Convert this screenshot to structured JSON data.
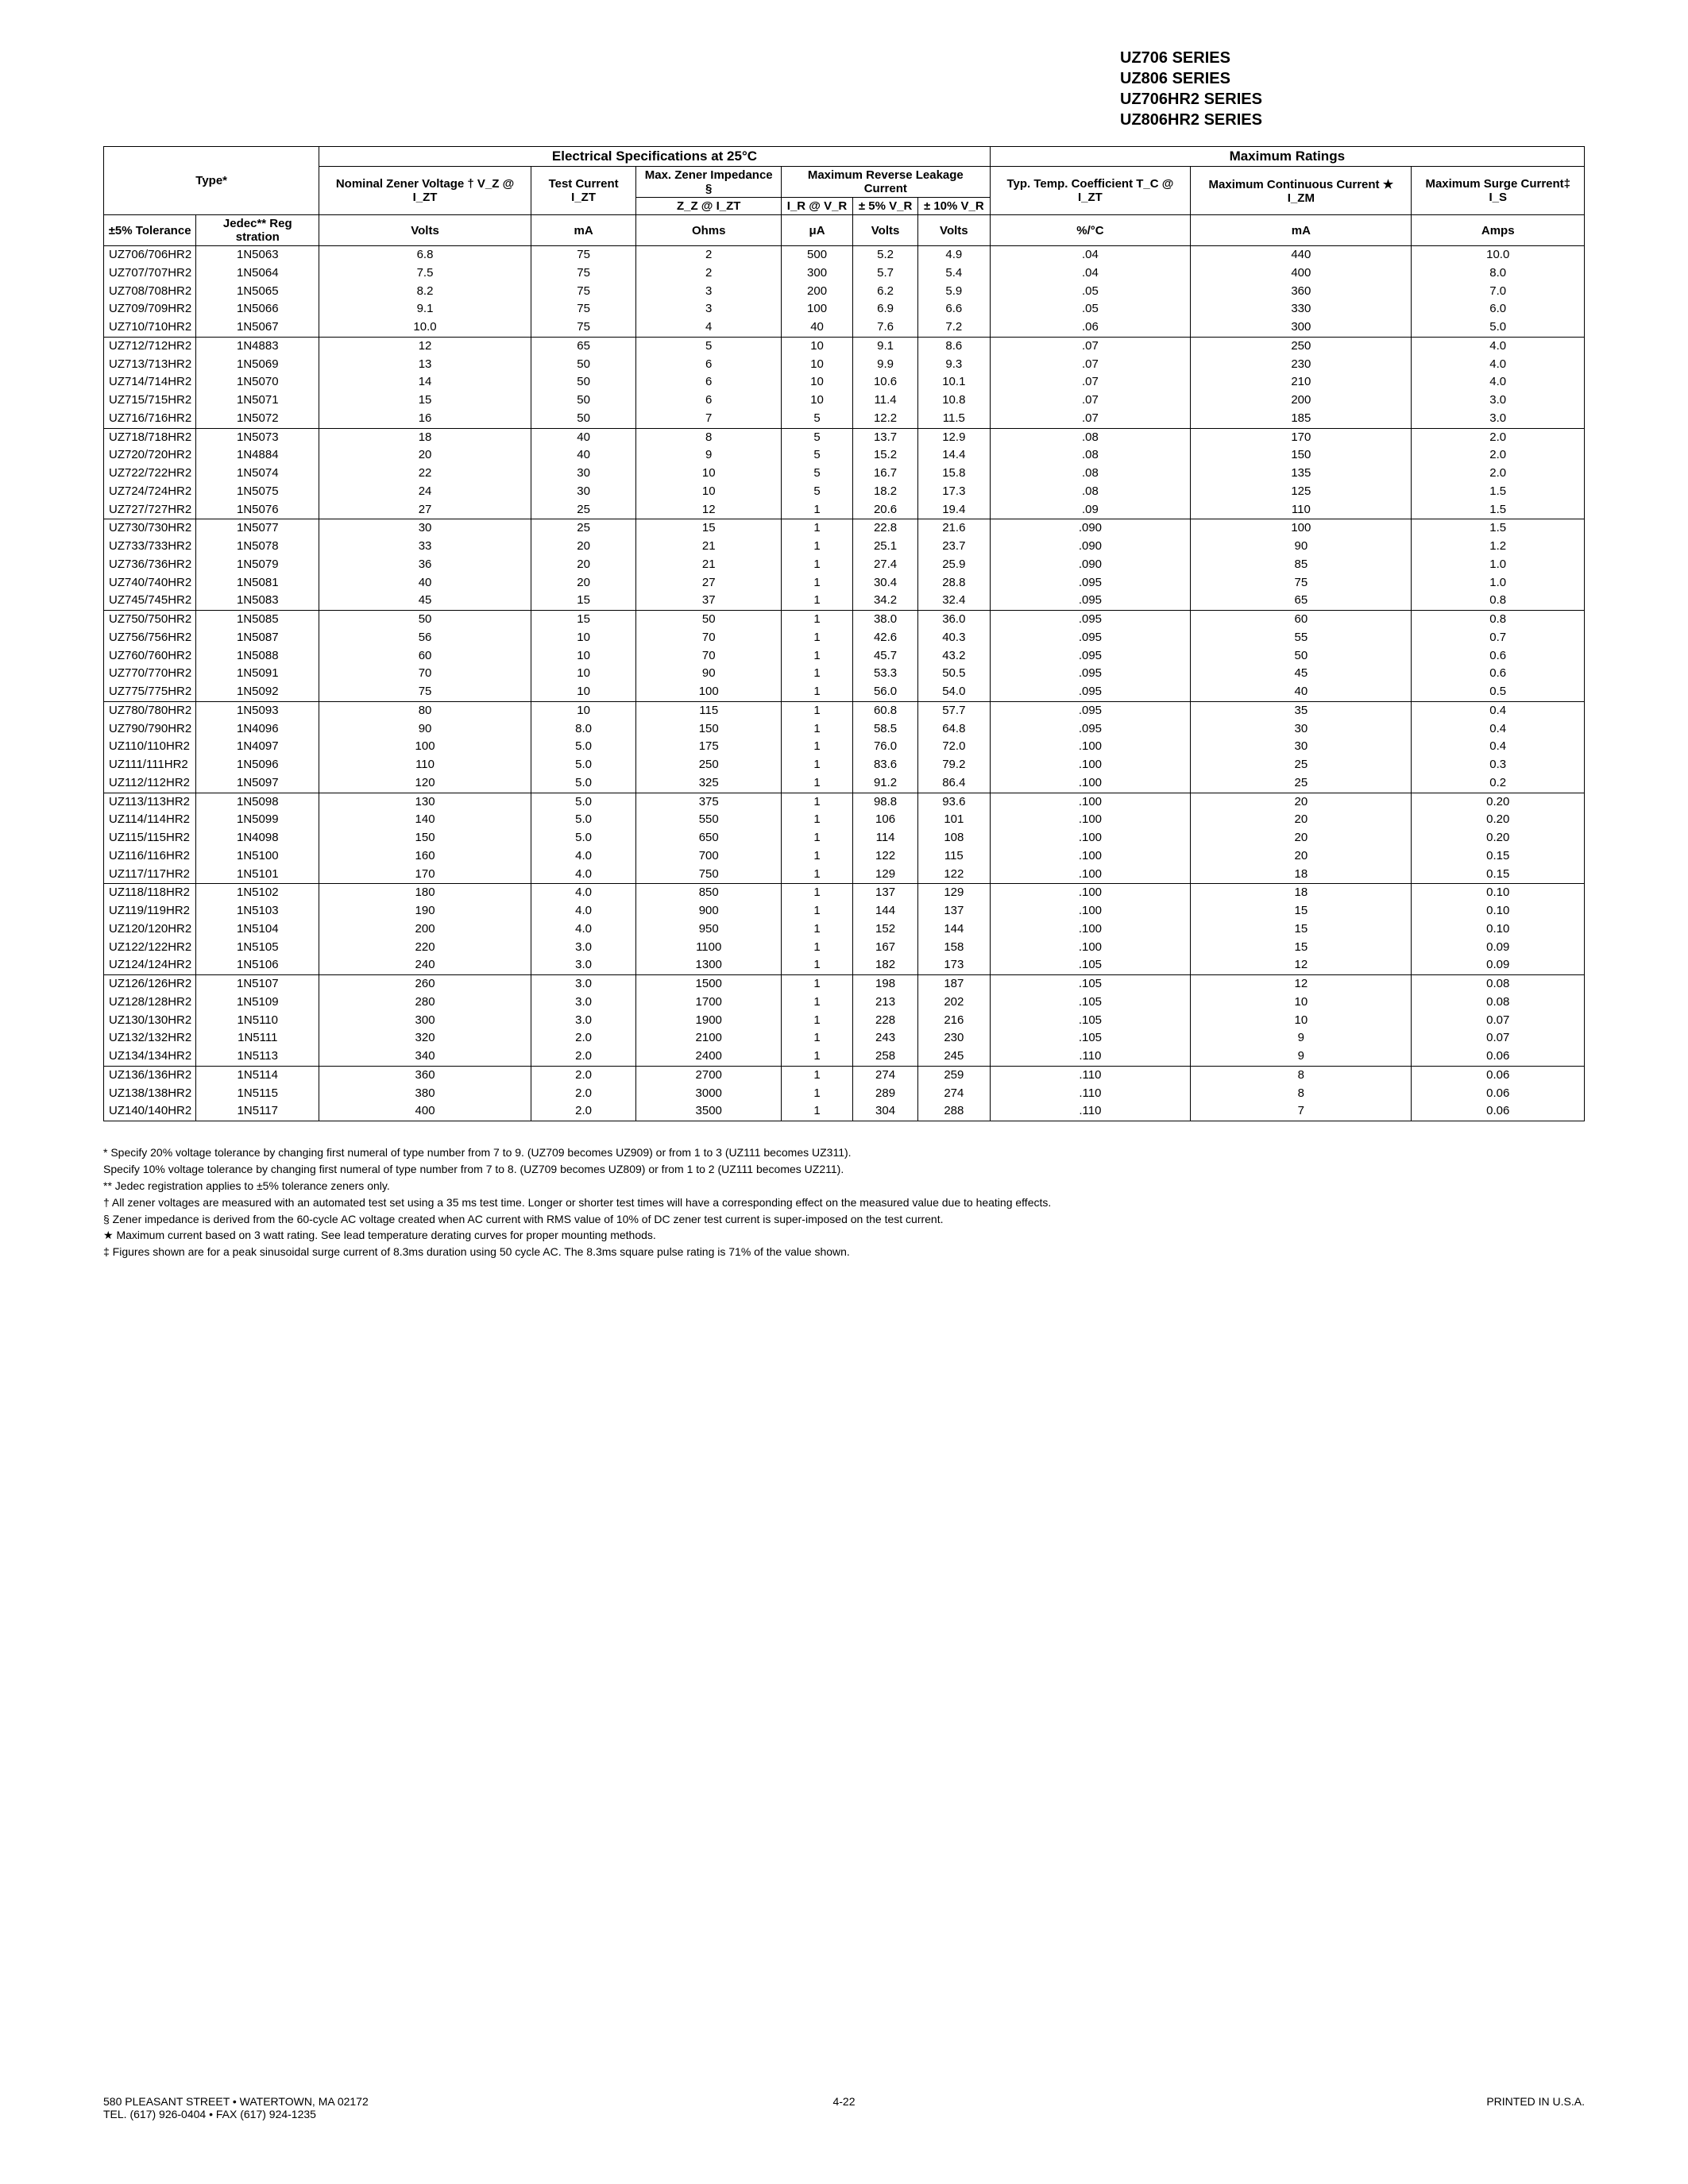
{
  "series_lines": [
    "UZ706 SERIES",
    "UZ806 SERIES",
    "UZ706HR2 SERIES",
    "UZ806HR2 SERIES"
  ],
  "headers": {
    "elec_spec": "Electrical Specifications at 25°C",
    "max_ratings": "Maximum Ratings",
    "type": "Type*",
    "nominal": "Nominal Zener Voltage † V_Z @ I_ZT",
    "test_current": "Test Current I_ZT",
    "max_zener_imp": "Max. Zener Impedance §",
    "zz": "Z_Z @ I_ZT",
    "max_rev_leak": "Maximum Reverse Leakage Current",
    "ir_vr": "I_R @ V_R",
    "pm5": "± 5% V_R",
    "pm10": "± 10% V_R",
    "typ_temp": "Typ. Temp. Coefficient T_C @ I_ZT",
    "max_cont": "Maximum Continuous Current ★ I_ZM",
    "max_surge": "Maximum Surge Current‡ I_S",
    "tol5": "±5% Tolerance",
    "jedec": "Jedec** Reg stration",
    "units": [
      "Volts",
      "mA",
      "Ohms",
      "μA",
      "Volts",
      "Volts",
      "%/°C",
      "mA",
      "Amps"
    ]
  },
  "groups": [
    [
      [
        "UZ706/706HR2",
        "1N5063",
        "6.8",
        "75",
        "2",
        "500",
        "5.2",
        "4.9",
        ".04",
        "440",
        "10.0"
      ],
      [
        "UZ707/707HR2",
        "1N5064",
        "7.5",
        "75",
        "2",
        "300",
        "5.7",
        "5.4",
        ".04",
        "400",
        "8.0"
      ],
      [
        "UZ708/708HR2",
        "1N5065",
        "8.2",
        "75",
        "3",
        "200",
        "6.2",
        "5.9",
        ".05",
        "360",
        "7.0"
      ],
      [
        "UZ709/709HR2",
        "1N5066",
        "9.1",
        "75",
        "3",
        "100",
        "6.9",
        "6.6",
        ".05",
        "330",
        "6.0"
      ],
      [
        "UZ710/710HR2",
        "1N5067",
        "10.0",
        "75",
        "4",
        "40",
        "7.6",
        "7.2",
        ".06",
        "300",
        "5.0"
      ]
    ],
    [
      [
        "UZ712/712HR2",
        "1N4883",
        "12",
        "65",
        "5",
        "10",
        "9.1",
        "8.6",
        ".07",
        "250",
        "4.0"
      ],
      [
        "UZ713/713HR2",
        "1N5069",
        "13",
        "50",
        "6",
        "10",
        "9.9",
        "9.3",
        ".07",
        "230",
        "4.0"
      ],
      [
        "UZ714/714HR2",
        "1N5070",
        "14",
        "50",
        "6",
        "10",
        "10.6",
        "10.1",
        ".07",
        "210",
        "4.0"
      ],
      [
        "UZ715/715HR2",
        "1N5071",
        "15",
        "50",
        "6",
        "10",
        "11.4",
        "10.8",
        ".07",
        "200",
        "3.0"
      ],
      [
        "UZ716/716HR2",
        "1N5072",
        "16",
        "50",
        "7",
        "5",
        "12.2",
        "11.5",
        ".07",
        "185",
        "3.0"
      ]
    ],
    [
      [
        "UZ718/718HR2",
        "1N5073",
        "18",
        "40",
        "8",
        "5",
        "13.7",
        "12.9",
        ".08",
        "170",
        "2.0"
      ],
      [
        "UZ720/720HR2",
        "1N4884",
        "20",
        "40",
        "9",
        "5",
        "15.2",
        "14.4",
        ".08",
        "150",
        "2.0"
      ],
      [
        "UZ722/722HR2",
        "1N5074",
        "22",
        "30",
        "10",
        "5",
        "16.7",
        "15.8",
        ".08",
        "135",
        "2.0"
      ],
      [
        "UZ724/724HR2",
        "1N5075",
        "24",
        "30",
        "10",
        "5",
        "18.2",
        "17.3",
        ".08",
        "125",
        "1.5"
      ],
      [
        "UZ727/727HR2",
        "1N5076",
        "27",
        "25",
        "12",
        "1",
        "20.6",
        "19.4",
        ".09",
        "110",
        "1.5"
      ]
    ],
    [
      [
        "UZ730/730HR2",
        "1N5077",
        "30",
        "25",
        "15",
        "1",
        "22.8",
        "21.6",
        ".090",
        "100",
        "1.5"
      ],
      [
        "UZ733/733HR2",
        "1N5078",
        "33",
        "20",
        "21",
        "1",
        "25.1",
        "23.7",
        ".090",
        "90",
        "1.2"
      ],
      [
        "UZ736/736HR2",
        "1N5079",
        "36",
        "20",
        "21",
        "1",
        "27.4",
        "25.9",
        ".090",
        "85",
        "1.0"
      ],
      [
        "UZ740/740HR2",
        "1N5081",
        "40",
        "20",
        "27",
        "1",
        "30.4",
        "28.8",
        ".095",
        "75",
        "1.0"
      ],
      [
        "UZ745/745HR2",
        "1N5083",
        "45",
        "15",
        "37",
        "1",
        "34.2",
        "32.4",
        ".095",
        "65",
        "0.8"
      ]
    ],
    [
      [
        "UZ750/750HR2",
        "1N5085",
        "50",
        "15",
        "50",
        "1",
        "38.0",
        "36.0",
        ".095",
        "60",
        "0.8"
      ],
      [
        "UZ756/756HR2",
        "1N5087",
        "56",
        "10",
        "70",
        "1",
        "42.6",
        "40.3",
        ".095",
        "55",
        "0.7"
      ],
      [
        "UZ760/760HR2",
        "1N5088",
        "60",
        "10",
        "70",
        "1",
        "45.7",
        "43.2",
        ".095",
        "50",
        "0.6"
      ],
      [
        "UZ770/770HR2",
        "1N5091",
        "70",
        "10",
        "90",
        "1",
        "53.3",
        "50.5",
        ".095",
        "45",
        "0.6"
      ],
      [
        "UZ775/775HR2",
        "1N5092",
        "75",
        "10",
        "100",
        "1",
        "56.0",
        "54.0",
        ".095",
        "40",
        "0.5"
      ]
    ],
    [
      [
        "UZ780/780HR2",
        "1N5093",
        "80",
        "10",
        "115",
        "1",
        "60.8",
        "57.7",
        ".095",
        "35",
        "0.4"
      ],
      [
        "UZ790/790HR2",
        "1N4096",
        "90",
        "8.0",
        "150",
        "1",
        "58.5",
        "64.8",
        ".095",
        "30",
        "0.4"
      ],
      [
        "UZ110/110HR2",
        "1N4097",
        "100",
        "5.0",
        "175",
        "1",
        "76.0",
        "72.0",
        ".100",
        "30",
        "0.4"
      ],
      [
        "UZ111/111HR2",
        "1N5096",
        "110",
        "5.0",
        "250",
        "1",
        "83.6",
        "79.2",
        ".100",
        "25",
        "0.3"
      ],
      [
        "UZ112/112HR2",
        "1N5097",
        "120",
        "5.0",
        "325",
        "1",
        "91.2",
        "86.4",
        ".100",
        "25",
        "0.2"
      ]
    ],
    [
      [
        "UZ113/113HR2",
        "1N5098",
        "130",
        "5.0",
        "375",
        "1",
        "98.8",
        "93.6",
        ".100",
        "20",
        "0.20"
      ],
      [
        "UZ114/114HR2",
        "1N5099",
        "140",
        "5.0",
        "550",
        "1",
        "106",
        "101",
        ".100",
        "20",
        "0.20"
      ],
      [
        "UZ115/115HR2",
        "1N4098",
        "150",
        "5.0",
        "650",
        "1",
        "114",
        "108",
        ".100",
        "20",
        "0.20"
      ],
      [
        "UZ116/116HR2",
        "1N5100",
        "160",
        "4.0",
        "700",
        "1",
        "122",
        "115",
        ".100",
        "20",
        "0.15"
      ],
      [
        "UZ117/117HR2",
        "1N5101",
        "170",
        "4.0",
        "750",
        "1",
        "129",
        "122",
        ".100",
        "18",
        "0.15"
      ]
    ],
    [
      [
        "UZ118/118HR2",
        "1N5102",
        "180",
        "4.0",
        "850",
        "1",
        "137",
        "129",
        ".100",
        "18",
        "0.10"
      ],
      [
        "UZ119/119HR2",
        "1N5103",
        "190",
        "4.0",
        "900",
        "1",
        "144",
        "137",
        ".100",
        "15",
        "0.10"
      ],
      [
        "UZ120/120HR2",
        "1N5104",
        "200",
        "4.0",
        "950",
        "1",
        "152",
        "144",
        ".100",
        "15",
        "0.10"
      ],
      [
        "UZ122/122HR2",
        "1N5105",
        "220",
        "3.0",
        "1100",
        "1",
        "167",
        "158",
        ".100",
        "15",
        "0.09"
      ],
      [
        "UZ124/124HR2",
        "1N5106",
        "240",
        "3.0",
        "1300",
        "1",
        "182",
        "173",
        ".105",
        "12",
        "0.09"
      ]
    ],
    [
      [
        "UZ126/126HR2",
        "1N5107",
        "260",
        "3.0",
        "1500",
        "1",
        "198",
        "187",
        ".105",
        "12",
        "0.08"
      ],
      [
        "UZ128/128HR2",
        "1N5109",
        "280",
        "3.0",
        "1700",
        "1",
        "213",
        "202",
        ".105",
        "10",
        "0.08"
      ],
      [
        "UZ130/130HR2",
        "1N5110",
        "300",
        "3.0",
        "1900",
        "1",
        "228",
        "216",
        ".105",
        "10",
        "0.07"
      ],
      [
        "UZ132/132HR2",
        "1N5111",
        "320",
        "2.0",
        "2100",
        "1",
        "243",
        "230",
        ".105",
        "9",
        "0.07"
      ],
      [
        "UZ134/134HR2",
        "1N5113",
        "340",
        "2.0",
        "2400",
        "1",
        "258",
        "245",
        ".110",
        "9",
        "0.06"
      ]
    ],
    [
      [
        "UZ136/136HR2",
        "1N5114",
        "360",
        "2.0",
        "2700",
        "1",
        "274",
        "259",
        ".110",
        "8",
        "0.06"
      ],
      [
        "UZ138/138HR2",
        "1N5115",
        "380",
        "2.0",
        "3000",
        "1",
        "289",
        "274",
        ".110",
        "8",
        "0.06"
      ],
      [
        "UZ140/140HR2",
        "1N5117",
        "400",
        "2.0",
        "3500",
        "1",
        "304",
        "288",
        ".110",
        "7",
        "0.06"
      ]
    ]
  ],
  "footnotes": [
    "* Specify 20% voltage tolerance by changing first numeral of type number from 7 to 9. (UZ709 becomes UZ909) or from 1 to 3 (UZ111 becomes UZ311).",
    "  Specify 10% voltage tolerance by changing first numeral of type number from 7 to 8. (UZ709 becomes UZ809) or from 1 to 2 (UZ111 becomes UZ211).",
    "** Jedec registration applies to ±5% tolerance zeners only.",
    "† All zener voltages are measured with an automated test set using a 35 ms test time. Longer or shorter test times will have a corresponding effect on the measured value due to heating effects.",
    "§ Zener impedance is derived from the 60-cycle AC voltage created when AC current with RMS value of 10% of DC zener test current is super-imposed on the test current.",
    "★ Maximum current based on 3 watt rating. See lead temperature derating curves for proper mounting methods.",
    "‡ Figures shown are for a peak sinusoidal surge current of 8.3ms duration using 50 cycle AC. The 8.3ms square pulse rating is 71% of the value shown."
  ],
  "footer": {
    "left1": "580 PLEASANT STREET • WATERTOWN, MA 02172",
    "left2": "TEL. (617) 926-0404 • FAX (617) 924-1235",
    "center": "4-22",
    "right": "PRINTED IN U.S.A."
  }
}
